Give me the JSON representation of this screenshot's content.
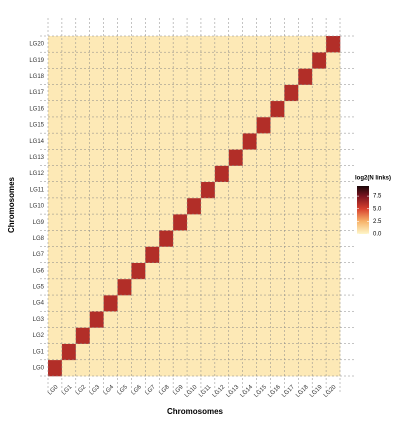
{
  "chart_data": {
    "type": "heatmap",
    "x_label": "Chromosomes",
    "y_label": "Chromosomes",
    "categories": [
      "LG0",
      "LG1",
      "LG2",
      "LG3",
      "LG4",
      "LG5",
      "LG6",
      "LG7",
      "LG8",
      "LG9",
      "LG10",
      "LG11",
      "LG12",
      "LG13",
      "LG14",
      "LG15",
      "LG16",
      "LG17",
      "LG18",
      "LG19",
      "LG20"
    ],
    "values": [
      [
        6,
        0.5,
        0.5,
        0.5,
        0.5,
        0.5,
        0.5,
        0.5,
        0.5,
        0.5,
        0.5,
        0.5,
        0.5,
        0.5,
        0.5,
        0.5,
        0.5,
        0.5,
        0.5,
        0.5,
        0.5
      ],
      [
        0.5,
        6,
        0.5,
        0.5,
        0.5,
        0.5,
        0.5,
        0.5,
        0.5,
        0.5,
        0.5,
        0.5,
        0.5,
        0.5,
        0.5,
        0.5,
        0.5,
        0.5,
        0.5,
        0.5,
        0.5
      ],
      [
        0.5,
        0.5,
        6,
        0.5,
        0.5,
        0.5,
        0.5,
        0.5,
        0.5,
        0.5,
        0.5,
        0.5,
        0.5,
        0.5,
        0.5,
        0.5,
        0.5,
        0.5,
        0.5,
        0.5,
        0.5
      ],
      [
        0.5,
        0.5,
        0.5,
        6,
        0.5,
        0.5,
        0.5,
        0.5,
        0.5,
        0.5,
        0.5,
        0.5,
        0.5,
        0.5,
        0.5,
        0.5,
        0.5,
        0.5,
        0.5,
        0.5,
        0.5
      ],
      [
        0.5,
        0.5,
        0.5,
        0.5,
        6,
        0.5,
        0.5,
        0.5,
        0.5,
        0.5,
        0.5,
        0.5,
        0.5,
        0.5,
        0.5,
        0.5,
        0.5,
        0.5,
        0.5,
        0.5,
        0.5
      ],
      [
        0.5,
        0.5,
        0.5,
        0.5,
        0.5,
        6,
        0.5,
        0.5,
        0.5,
        0.5,
        0.5,
        0.5,
        0.5,
        0.5,
        0.5,
        0.5,
        0.5,
        0.5,
        0.5,
        0.5,
        0.5
      ],
      [
        0.5,
        0.5,
        0.5,
        0.5,
        0.5,
        0.5,
        6,
        0.5,
        0.5,
        0.5,
        0.5,
        0.5,
        0.5,
        0.5,
        0.5,
        0.5,
        0.5,
        0.5,
        0.5,
        0.5,
        0.5
      ],
      [
        0.5,
        0.5,
        0.5,
        0.5,
        0.5,
        0.5,
        0.5,
        6,
        0.5,
        0.5,
        0.5,
        0.5,
        0.5,
        0.5,
        0.5,
        0.5,
        0.5,
        0.5,
        0.5,
        0.5,
        0.5
      ],
      [
        0.5,
        0.5,
        0.5,
        0.5,
        0.5,
        0.5,
        0.5,
        0.5,
        6,
        0.5,
        0.5,
        0.5,
        0.5,
        0.5,
        0.5,
        0.5,
        0.5,
        0.5,
        0.5,
        0.5,
        0.5
      ],
      [
        0.5,
        0.5,
        0.5,
        0.5,
        0.5,
        0.5,
        0.5,
        0.5,
        0.5,
        6,
        0.5,
        0.5,
        0.5,
        0.5,
        0.5,
        0.5,
        0.5,
        0.5,
        0.5,
        0.5,
        0.5
      ],
      [
        0.5,
        0.5,
        0.5,
        0.5,
        0.5,
        0.5,
        0.5,
        0.5,
        0.5,
        0.5,
        6,
        0.5,
        0.5,
        0.5,
        0.5,
        0.5,
        0.5,
        0.5,
        0.5,
        0.5,
        0.5
      ],
      [
        0.5,
        0.5,
        0.5,
        0.5,
        0.5,
        0.5,
        0.5,
        0.5,
        0.5,
        0.5,
        0.5,
        6,
        0.5,
        0.5,
        0.5,
        0.5,
        0.5,
        0.5,
        0.5,
        0.5,
        0.5
      ],
      [
        0.5,
        0.5,
        0.5,
        0.5,
        0.5,
        0.5,
        0.5,
        0.5,
        0.5,
        0.5,
        0.5,
        0.5,
        6,
        0.5,
        0.5,
        0.5,
        0.5,
        0.5,
        0.5,
        0.5,
        0.5
      ],
      [
        0.5,
        0.5,
        0.5,
        0.5,
        0.5,
        0.5,
        0.5,
        0.5,
        0.5,
        0.5,
        0.5,
        0.5,
        0.5,
        6,
        0.5,
        0.5,
        0.5,
        0.5,
        0.5,
        0.5,
        0.5
      ],
      [
        0.5,
        0.5,
        0.5,
        0.5,
        0.5,
        0.5,
        0.5,
        0.5,
        0.5,
        0.5,
        0.5,
        0.5,
        0.5,
        0.5,
        6,
        0.5,
        0.5,
        0.5,
        0.5,
        0.5,
        0.5
      ],
      [
        0.5,
        0.5,
        0.5,
        0.5,
        0.5,
        0.5,
        0.5,
        0.5,
        0.5,
        0.5,
        0.5,
        0.5,
        0.5,
        0.5,
        0.5,
        6,
        0.5,
        0.5,
        0.5,
        0.5,
        0.5
      ],
      [
        0.5,
        0.5,
        0.5,
        0.5,
        0.5,
        0.5,
        0.5,
        0.5,
        0.5,
        0.5,
        0.5,
        0.5,
        0.5,
        0.5,
        0.5,
        0.5,
        6,
        0.5,
        0.5,
        0.5,
        0.5
      ],
      [
        0.5,
        0.5,
        0.5,
        0.5,
        0.5,
        0.5,
        0.5,
        0.5,
        0.5,
        0.5,
        0.5,
        0.5,
        0.5,
        0.5,
        0.5,
        0.5,
        0.5,
        6,
        0.5,
        0.5,
        0.5
      ],
      [
        0.5,
        0.5,
        0.5,
        0.5,
        0.5,
        0.5,
        0.5,
        0.5,
        0.5,
        0.5,
        0.5,
        0.5,
        0.5,
        0.5,
        0.5,
        0.5,
        0.5,
        0.5,
        6,
        0.5,
        0.5
      ],
      [
        0.5,
        0.5,
        0.5,
        0.5,
        0.5,
        0.5,
        0.5,
        0.5,
        0.5,
        0.5,
        0.5,
        0.5,
        0.5,
        0.5,
        0.5,
        0.5,
        0.5,
        0.5,
        0.5,
        6,
        0.5
      ],
      [
        0.5,
        0.5,
        0.5,
        0.5,
        0.5,
        0.5,
        0.5,
        0.5,
        0.5,
        0.5,
        0.5,
        0.5,
        0.5,
        0.5,
        0.5,
        0.5,
        0.5,
        0.5,
        0.5,
        0.5,
        6
      ]
    ],
    "legend_title": "log2(N links)",
    "zlim": [
      0,
      9.5
    ],
    "zticks": [
      {
        "value": 0,
        "label": "0.0"
      },
      {
        "value": 2.5,
        "label": "2.5"
      },
      {
        "value": 5,
        "label": "5.0"
      },
      {
        "value": 7.5,
        "label": "7.5"
      }
    ],
    "colorscale": [
      [
        0,
        "#fef6c9"
      ],
      [
        2.5,
        "#f7b36a"
      ],
      [
        5,
        "#d8402e"
      ],
      [
        7.5,
        "#7a1420"
      ],
      [
        9.5,
        "#1a0608"
      ]
    ]
  }
}
